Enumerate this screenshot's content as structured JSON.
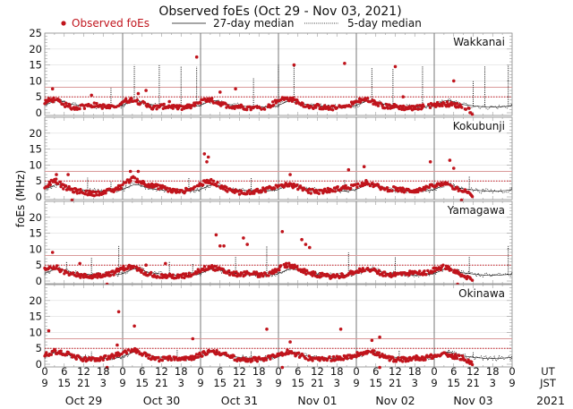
{
  "chart_data": {
    "type": "scatter",
    "title": "Observed foEs (Oct 29 - Nov 03, 2021)",
    "ylabel": "foEs (MHz)",
    "ylim": [
      0,
      25
    ],
    "yticks": [
      0,
      5,
      10,
      15,
      20,
      25
    ],
    "yticks_lower_panels": [
      0,
      5,
      10,
      15,
      20
    ],
    "grid": true,
    "legend": {
      "placement": "top",
      "entries": [
        {
          "label": "Observed foEs",
          "style": "red-dot"
        },
        {
          "label": "27-day median",
          "style": "solid-line"
        },
        {
          "label": "5-day median",
          "style": "dotted-line"
        }
      ]
    },
    "x": {
      "days": [
        "Oct 29",
        "Oct 30",
        "Oct 31",
        "Nov 01",
        "Nov 02",
        "Nov 03"
      ],
      "ut_ticks": [
        "0",
        "6",
        "12",
        "18"
      ],
      "jst_ticks": [
        "9",
        "15",
        "21",
        "3"
      ],
      "ut_end": "0",
      "jst_end": "9",
      "ut_label": "UT",
      "jst_label": "JST",
      "year": "2021"
    },
    "reference_lines": {
      "threshold_solid_mhz": 8,
      "threshold_dotted_mhz": 5
    },
    "colors": {
      "observed": "#c0141c",
      "median": "#111111",
      "threshold_solid": "#d99a9a",
      "threshold_dotted": "#c0141c",
      "grid": "#dddddd",
      "day_separator": "#777777"
    },
    "panels": [
      {
        "station": "Wakkanai",
        "observed_profile": [
          3.5,
          4.2,
          2.5,
          1.5,
          2.0,
          2.5,
          2.0,
          1.5,
          3.5,
          4.2,
          3.0,
          1.5,
          2.0,
          2.0,
          1.5,
          2.0,
          3.5,
          4.0,
          3.0,
          2.0,
          2.0,
          1.5,
          1.5,
          2.0,
          4.0,
          4.5,
          3.5,
          2.0,
          2.0,
          1.5,
          1.5,
          2.0,
          3.5,
          4.2,
          3.0,
          2.0,
          2.0,
          1.5,
          1.5,
          2.0,
          2.5,
          2.8,
          2.5,
          2.0,
          0,
          0,
          0,
          0
        ],
        "observed_outliers": [
          [
            0.1,
            7.5
          ],
          [
            0.6,
            5.5
          ],
          [
            1.2,
            6.0
          ],
          [
            1.3,
            7.0
          ],
          [
            1.6,
            3.5
          ],
          [
            1.95,
            17.5
          ],
          [
            2.25,
            6.5
          ],
          [
            2.45,
            7.5
          ],
          [
            3.2,
            15.0
          ],
          [
            3.85,
            15.5
          ],
          [
            4.5,
            14.5
          ],
          [
            4.6,
            5.0
          ],
          [
            5.25,
            10.0
          ]
        ],
        "median_spikes": [
          [
            0.85,
            8.0
          ],
          [
            1.15,
            15.0
          ],
          [
            1.47,
            15.0
          ],
          [
            1.75,
            14.5
          ],
          [
            1.95,
            14.5
          ],
          [
            2.68,
            11.0
          ],
          [
            3.0,
            15.0
          ],
          [
            3.2,
            15.5
          ],
          [
            4.2,
            14.0
          ],
          [
            4.47,
            14.0
          ],
          [
            4.85,
            14.5
          ],
          [
            5.5,
            10.0
          ],
          [
            5.65,
            14.5
          ],
          [
            5.95,
            15.0
          ]
        ]
      },
      {
        "station": "Kokubunji",
        "observed_profile": [
          3.0,
          5.5,
          3.0,
          2.0,
          1.5,
          1.0,
          1.5,
          2.0,
          3.5,
          6.0,
          4.5,
          3.5,
          3.0,
          2.0,
          1.5,
          2.5,
          4.0,
          5.0,
          3.5,
          2.0,
          1.5,
          1.5,
          2.0,
          2.5,
          3.5,
          4.0,
          3.0,
          2.0,
          1.5,
          2.0,
          2.5,
          3.0,
          3.5,
          4.5,
          3.5,
          2.5,
          2.5,
          2.0,
          2.0,
          2.5,
          3.5,
          4.0,
          3.0,
          2.0,
          0,
          0,
          0,
          0
        ],
        "observed_outliers": [
          [
            0.15,
            7.0
          ],
          [
            0.3,
            7.0
          ],
          [
            1.1,
            8.0
          ],
          [
            1.2,
            8.0
          ],
          [
            2.05,
            13.5
          ],
          [
            2.08,
            11.0
          ],
          [
            2.1,
            12.5
          ],
          [
            3.15,
            7.0
          ],
          [
            3.9,
            8.5
          ],
          [
            4.1,
            9.5
          ],
          [
            4.95,
            11.0
          ],
          [
            5.2,
            11.5
          ],
          [
            5.25,
            9.0
          ],
          [
            5.35,
            -1.0
          ],
          [
            0.35,
            -1.0
          ]
        ],
        "median_spikes": [
          [
            0.55,
            6.0
          ],
          [
            0.85,
            5.0
          ],
          [
            1.85,
            6.0
          ],
          [
            2.65,
            6.0
          ],
          [
            3.85,
            5.5
          ],
          [
            5.45,
            6.5
          ]
        ]
      },
      {
        "station": "Yamagawa",
        "observed_profile": [
          3.5,
          4.5,
          3.0,
          2.0,
          1.5,
          1.5,
          2.0,
          2.5,
          4.0,
          4.5,
          3.0,
          2.0,
          1.5,
          1.5,
          1.5,
          2.0,
          3.5,
          4.5,
          3.5,
          2.5,
          2.0,
          2.5,
          2.0,
          2.0,
          4.0,
          5.0,
          4.0,
          2.5,
          2.0,
          1.5,
          1.5,
          2.0,
          3.0,
          4.0,
          3.0,
          2.0,
          2.0,
          2.5,
          2.5,
          2.5,
          3.5,
          4.5,
          3.0,
          2.0,
          0,
          0,
          0,
          0
        ],
        "observed_outliers": [
          [
            0.1,
            9.0
          ],
          [
            0.45,
            5.5
          ],
          [
            0.8,
            -1.0
          ],
          [
            1.3,
            5.0
          ],
          [
            1.55,
            5.5
          ],
          [
            2.2,
            14.5
          ],
          [
            2.25,
            11.0
          ],
          [
            2.3,
            11.0
          ],
          [
            2.55,
            13.5
          ],
          [
            2.6,
            11.5
          ],
          [
            3.05,
            15.5
          ],
          [
            3.3,
            13.0
          ],
          [
            3.35,
            11.5
          ],
          [
            3.4,
            10.5
          ],
          [
            3.1,
            5.5
          ],
          [
            5.3,
            -1.0
          ]
        ],
        "median_spikes": [
          [
            0.28,
            6.0
          ],
          [
            0.6,
            7.5
          ],
          [
            0.95,
            11.0
          ],
          [
            1.6,
            6.0
          ],
          [
            1.9,
            5.5
          ],
          [
            2.45,
            7.5
          ],
          [
            2.85,
            11.0
          ],
          [
            3.9,
            9.0
          ],
          [
            4.5,
            7.5
          ],
          [
            5.45,
            7.5
          ],
          [
            5.95,
            11.0
          ]
        ]
      },
      {
        "station": "Okinawa",
        "observed_profile": [
          3.0,
          4.0,
          3.5,
          2.5,
          1.5,
          1.5,
          2.0,
          2.5,
          3.5,
          4.5,
          3.5,
          2.0,
          1.5,
          2.0,
          2.0,
          2.0,
          3.0,
          4.0,
          3.5,
          2.5,
          1.5,
          1.5,
          1.5,
          2.0,
          3.0,
          4.0,
          3.0,
          2.0,
          1.5,
          1.5,
          2.0,
          2.0,
          3.0,
          4.0,
          3.5,
          2.0,
          1.5,
          1.5,
          2.0,
          2.0,
          2.5,
          3.0,
          2.5,
          2.0,
          0,
          0,
          0,
          0
        ],
        "observed_outliers": [
          [
            0.05,
            10.5
          ],
          [
            0.95,
            16.5
          ],
          [
            0.93,
            6.0
          ],
          [
            1.15,
            12.0
          ],
          [
            1.9,
            8.0
          ],
          [
            2.85,
            11.0
          ],
          [
            3.8,
            11.0
          ],
          [
            3.15,
            7.0
          ],
          [
            4.3,
            8.5
          ],
          [
            4.2,
            7.5
          ],
          [
            0.8,
            -1.0
          ],
          [
            3.05,
            -1.0
          ],
          [
            4.3,
            -1.0
          ]
        ],
        "median_spikes": [
          [
            0.6,
            4.0
          ],
          [
            1.7,
            4.5
          ],
          [
            2.65,
            4.0
          ],
          [
            4.55,
            4.5
          ],
          [
            5.5,
            4.0
          ]
        ]
      }
    ]
  }
}
